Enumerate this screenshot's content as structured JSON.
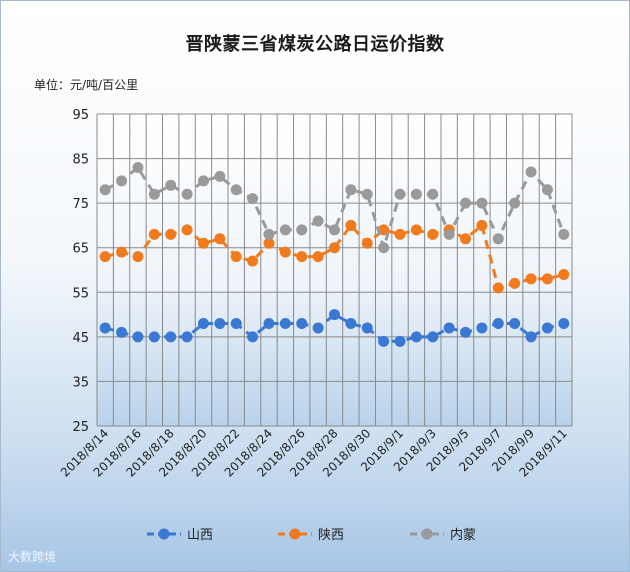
{
  "chart_data": {
    "type": "line",
    "title": "晋陕蒙三省煤炭公路日运价指数",
    "unit_label": "单位：元/吨/百公里",
    "ylim": [
      25,
      95
    ],
    "yticks": [
      25,
      35,
      45,
      55,
      65,
      75,
      85,
      95
    ],
    "x": [
      "2018/8/14",
      "2018/8/15",
      "2018/8/16",
      "2018/8/17",
      "2018/8/18",
      "2018/8/19",
      "2018/8/20",
      "2018/8/21",
      "2018/8/22",
      "2018/8/23",
      "2018/8/24",
      "2018/8/25",
      "2018/8/26",
      "2018/8/27",
      "2018/8/28",
      "2018/8/29",
      "2018/8/30",
      "2018/8/31",
      "2018/9/1",
      "2018/9/2",
      "2018/9/3",
      "2018/9/4",
      "2018/9/5",
      "2018/9/6",
      "2018/9/7",
      "2018/9/8",
      "2018/9/9",
      "2018/9/10",
      "2018/9/11"
    ],
    "x_tick_labels": [
      "2018/8/14",
      "2018/8/16",
      "2018/8/18",
      "2018/8/20",
      "2018/8/22",
      "2018/8/24",
      "2018/8/26",
      "2018/8/28",
      "2018/8/30",
      "2018/9/1",
      "2018/9/3",
      "2018/9/5",
      "2018/9/7",
      "2018/9/9",
      "2018/9/11"
    ],
    "grid": true,
    "legend_position": "bottom",
    "series": [
      {
        "name": "山西",
        "color": "#3a78d4",
        "values": [
          47,
          46,
          45,
          45,
          45,
          45,
          48,
          48,
          48,
          45,
          48,
          48,
          48,
          47,
          50,
          48,
          47,
          44,
          44,
          45,
          45,
          47,
          46,
          47,
          48,
          48,
          45,
          47,
          48
        ]
      },
      {
        "name": "陕西",
        "color": "#f07a1c",
        "values": [
          63,
          64,
          63,
          68,
          68,
          69,
          66,
          67,
          63,
          62,
          66,
          64,
          63,
          63,
          65,
          70,
          66,
          69,
          68,
          69,
          68,
          69,
          67,
          70,
          56,
          57,
          58,
          58,
          59
        ]
      },
      {
        "name": "内蒙",
        "color": "#9a9a9a",
        "values": [
          78,
          80,
          83,
          77,
          79,
          77,
          80,
          81,
          78,
          76,
          68,
          69,
          69,
          71,
          69,
          78,
          77,
          65,
          77,
          77,
          77,
          68,
          75,
          75,
          67,
          75,
          82,
          78,
          68
        ]
      }
    ]
  },
  "watermark": "大数跨境"
}
